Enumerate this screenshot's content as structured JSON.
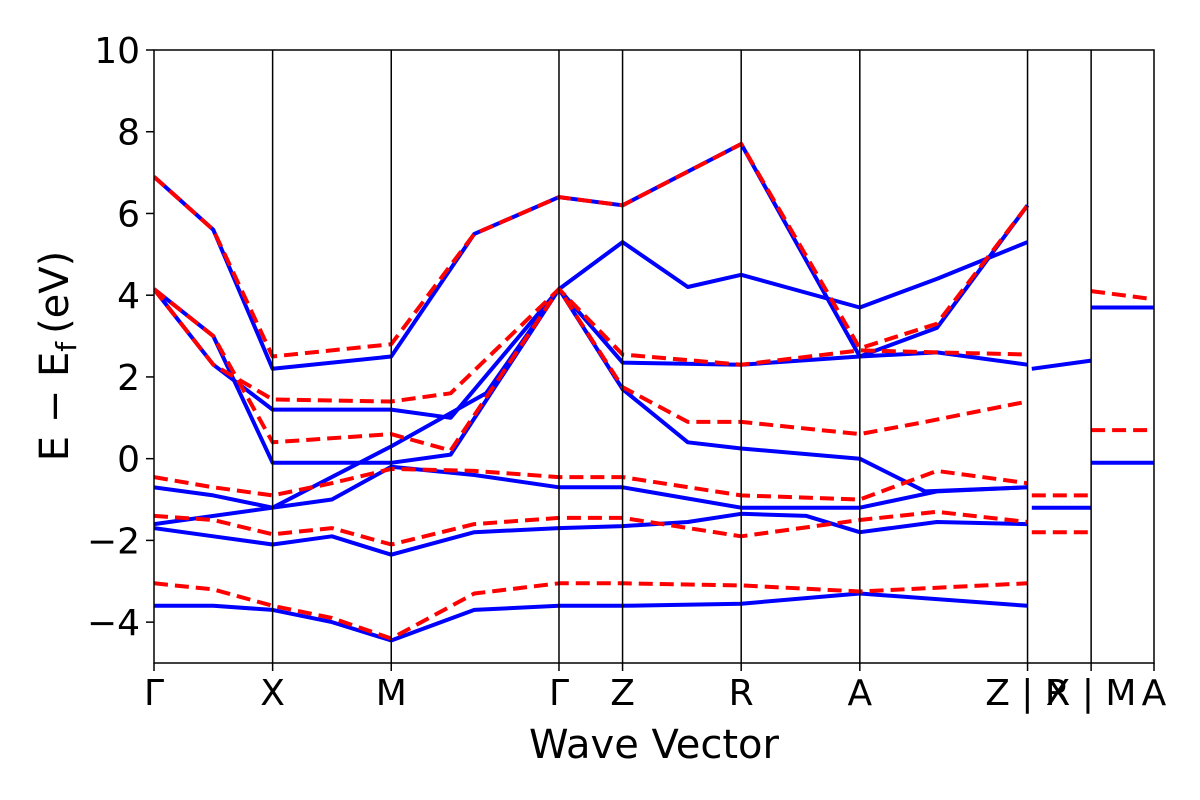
{
  "chart_data": {
    "type": "line",
    "xlabel": "Wave Vector",
    "ylabel_main": "E − E",
    "ylabel_sub": "f",
    "ylabel_unit": "(eV)",
    "ylim": [
      -5,
      10
    ],
    "y_ticks": [
      10,
      8,
      6,
      4,
      2,
      0,
      -2,
      -4
    ],
    "y_tick_labels": [
      "10",
      "8",
      "6",
      "4",
      "2",
      "0",
      "−2",
      "−4"
    ],
    "x_tick_labels": [
      "Γ",
      "X",
      "M",
      "Γ",
      "Z",
      "R",
      "A",
      "Z | R",
      "X | M",
      "A"
    ],
    "k_path_breaks": [
      0.0,
      1.0,
      2.0,
      3.414,
      3.95,
      4.95,
      5.95,
      7.364,
      7.9,
      8.43
    ],
    "x_range": [
      0.0,
      8.43
    ],
    "grid": false,
    "series_styles": [
      {
        "style": "solid",
        "color": "#0000ff"
      },
      {
        "style": "dashed",
        "color": "#ff0000"
      }
    ],
    "series": [
      {
        "style_index": 0,
        "bands": [
          [
            [
              0,
              -3.6
            ],
            [
              0.5,
              -3.6
            ],
            [
              1,
              -3.7
            ],
            [
              1.5,
              -4.0
            ],
            [
              2,
              -4.45
            ],
            [
              2.7,
              -3.7
            ],
            [
              3.414,
              -3.6
            ],
            [
              3.95,
              -3.6
            ],
            [
              4.95,
              -3.55
            ],
            [
              5.95,
              -3.3
            ],
            [
              7.364,
              -3.6
            ]
          ],
          [
            [
              0,
              -1.7
            ],
            [
              0.5,
              -1.9
            ],
            [
              1,
              -2.1
            ],
            [
              1.5,
              -1.9
            ],
            [
              2,
              -2.35
            ],
            [
              2.7,
              -1.8
            ],
            [
              3.414,
              -1.7
            ],
            [
              3.95,
              -1.65
            ],
            [
              4.5,
              -1.55
            ],
            [
              4.95,
              -1.35
            ],
            [
              5.5,
              -1.4
            ],
            [
              5.95,
              -1.8
            ],
            [
              6.6,
              -1.55
            ],
            [
              7.364,
              -1.6
            ]
          ],
          [
            [
              0,
              -0.7
            ],
            [
              0.5,
              -0.9
            ],
            [
              1,
              -1.2
            ],
            [
              1.5,
              -1.0
            ],
            [
              2,
              -0.2
            ],
            [
              2.7,
              -0.4
            ],
            [
              3.414,
              -0.7
            ],
            [
              3.95,
              -0.7
            ],
            [
              4.95,
              -1.2
            ],
            [
              5.95,
              -1.2
            ],
            [
              6.6,
              -0.8
            ],
            [
              7.364,
              -0.7
            ]
          ],
          [
            [
              0,
              -1.6
            ],
            [
              1,
              -1.2
            ],
            [
              2,
              0.3
            ],
            [
              2.8,
              1.6
            ],
            [
              3.414,
              4.15
            ],
            [
              3.95,
              5.3
            ],
            [
              4.5,
              4.2
            ],
            [
              4.95,
              4.5
            ],
            [
              5.95,
              3.7
            ],
            [
              6.6,
              4.4
            ],
            [
              7.364,
              5.3
            ]
          ],
          [
            [
              0,
              4.15
            ],
            [
              0.5,
              3.0
            ],
            [
              1,
              -0.1
            ],
            [
              2,
              -0.1
            ],
            [
              2.5,
              0.1
            ],
            [
              3.414,
              4.15
            ],
            [
              3.95,
              2.35
            ],
            [
              4.95,
              2.3
            ],
            [
              5.95,
              2.5
            ],
            [
              6.6,
              2.6
            ],
            [
              7.364,
              2.3
            ]
          ],
          [
            [
              0,
              4.15
            ],
            [
              0.5,
              2.3
            ],
            [
              1,
              1.2
            ],
            [
              2,
              1.2
            ],
            [
              2.5,
              1.0
            ],
            [
              3.414,
              4.15
            ],
            [
              3.95,
              1.7
            ],
            [
              4.5,
              0.4
            ],
            [
              4.95,
              0.25
            ],
            [
              5.95,
              0.0
            ],
            [
              6.5,
              -0.8
            ],
            [
              7.364,
              -0.7
            ]
          ],
          [
            [
              0,
              6.9
            ],
            [
              0.5,
              5.6
            ],
            [
              1,
              2.2
            ],
            [
              2,
              2.5
            ],
            [
              2.7,
              5.5
            ],
            [
              3.414,
              6.4
            ],
            [
              3.95,
              6.2
            ],
            [
              4.95,
              7.7
            ],
            [
              5.95,
              2.5
            ],
            [
              6.6,
              3.2
            ],
            [
              7.364,
              6.2
            ]
          ],
          [
            [
              7.9,
              -0.1
            ],
            [
              8.43,
              -0.1
            ]
          ],
          [
            [
              7.4,
              -1.2
            ],
            [
              7.9,
              -1.2
            ]
          ],
          [
            [
              7.4,
              2.2
            ],
            [
              7.9,
              2.4
            ]
          ],
          [
            [
              7.9,
              3.7
            ],
            [
              8.43,
              3.7
            ]
          ]
        ]
      },
      {
        "style_index": 1,
        "bands": [
          [
            [
              0,
              -3.05
            ],
            [
              0.5,
              -3.2
            ],
            [
              1,
              -3.6
            ],
            [
              1.5,
              -3.9
            ],
            [
              2,
              -4.4
            ],
            [
              2.7,
              -3.3
            ],
            [
              3.414,
              -3.05
            ],
            [
              3.95,
              -3.05
            ],
            [
              4.95,
              -3.1
            ],
            [
              5.95,
              -3.25
            ],
            [
              7.364,
              -3.05
            ]
          ],
          [
            [
              0,
              -1.4
            ],
            [
              0.5,
              -1.5
            ],
            [
              1,
              -1.85
            ],
            [
              1.5,
              -1.7
            ],
            [
              2,
              -2.1
            ],
            [
              2.7,
              -1.6
            ],
            [
              3.414,
              -1.45
            ],
            [
              3.95,
              -1.45
            ],
            [
              4.95,
              -1.9
            ],
            [
              5.95,
              -1.5
            ],
            [
              6.6,
              -1.3
            ],
            [
              7.364,
              -1.55
            ]
          ],
          [
            [
              0,
              -0.45
            ],
            [
              0.5,
              -0.7
            ],
            [
              1,
              -0.9
            ],
            [
              1.5,
              -0.6
            ],
            [
              2,
              -0.25
            ],
            [
              2.7,
              -0.3
            ],
            [
              3.414,
              -0.45
            ],
            [
              3.95,
              -0.45
            ],
            [
              4.95,
              -0.9
            ],
            [
              5.95,
              -1.0
            ],
            [
              6.6,
              -0.3
            ],
            [
              7.364,
              -0.6
            ]
          ],
          [
            [
              0,
              4.15
            ],
            [
              0.5,
              3.0
            ],
            [
              1,
              0.4
            ],
            [
              2,
              0.6
            ],
            [
              2.5,
              0.2
            ],
            [
              3.414,
              4.15
            ],
            [
              3.95,
              2.55
            ],
            [
              4.95,
              2.3
            ],
            [
              5.95,
              2.65
            ],
            [
              6.6,
              2.6
            ],
            [
              7.364,
              2.55
            ]
          ],
          [
            [
              0,
              4.15
            ],
            [
              0.5,
              2.3
            ],
            [
              1,
              1.45
            ],
            [
              2,
              1.4
            ],
            [
              2.5,
              1.6
            ],
            [
              3.414,
              4.15
            ],
            [
              3.95,
              1.75
            ],
            [
              4.5,
              0.9
            ],
            [
              4.95,
              0.9
            ],
            [
              5.95,
              0.6
            ],
            [
              6.5,
              0.9
            ],
            [
              7.364,
              1.4
            ]
          ],
          [
            [
              0,
              6.9
            ],
            [
              0.5,
              5.6
            ],
            [
              1,
              2.5
            ],
            [
              2,
              2.8
            ],
            [
              2.7,
              5.5
            ],
            [
              3.414,
              6.4
            ],
            [
              3.95,
              6.2
            ],
            [
              4.95,
              7.7
            ],
            [
              5.95,
              2.7
            ],
            [
              6.6,
              3.3
            ],
            [
              7.364,
              6.2
            ]
          ],
          [
            [
              7.4,
              -0.9
            ],
            [
              7.9,
              -0.9
            ]
          ],
          [
            [
              7.4,
              -1.8
            ],
            [
              7.9,
              -1.8
            ]
          ],
          [
            [
              7.9,
              0.7
            ],
            [
              8.43,
              0.7
            ]
          ],
          [
            [
              7.9,
              4.1
            ],
            [
              8.43,
              3.9
            ]
          ]
        ]
      }
    ]
  }
}
